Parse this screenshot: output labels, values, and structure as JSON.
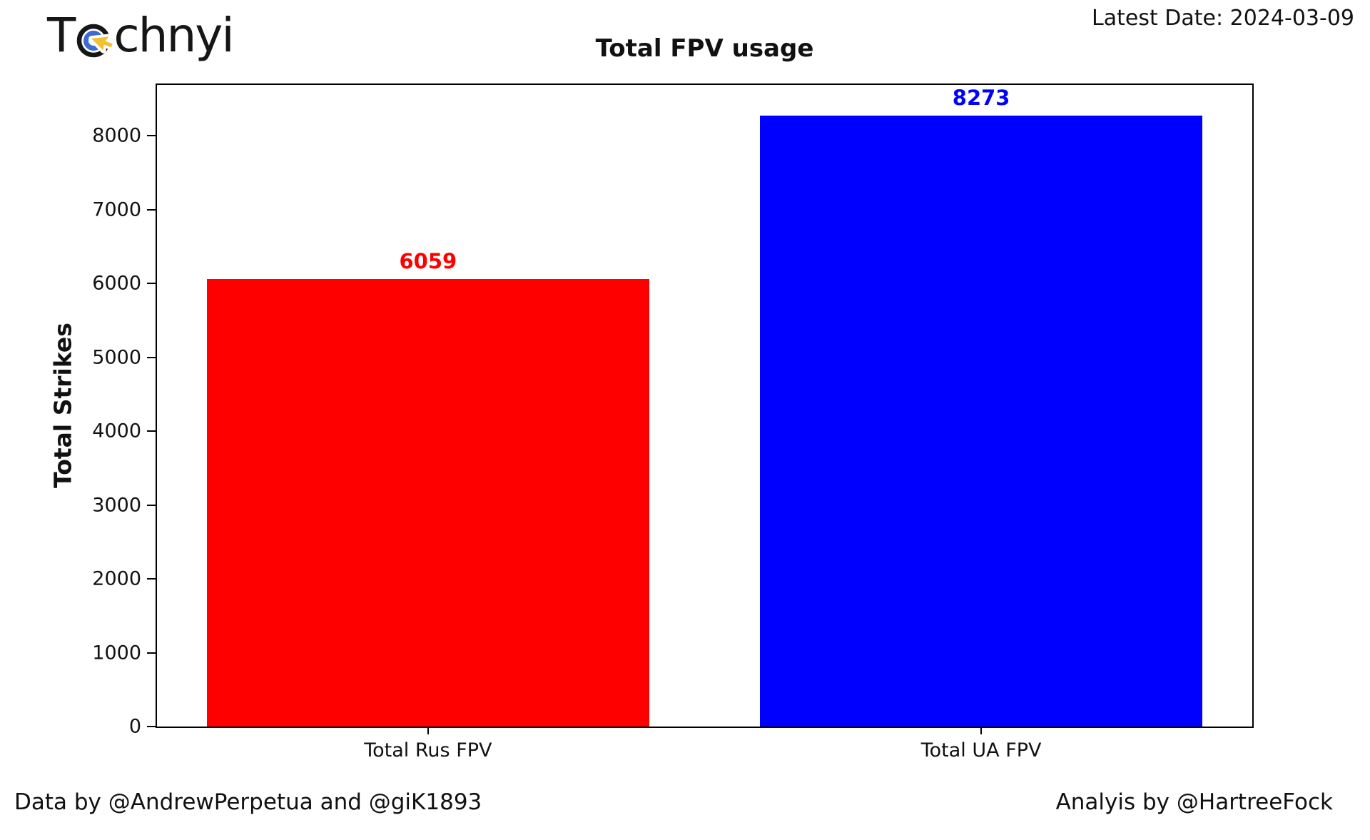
{
  "logo": {
    "prefix": "T",
    "suffix": "chnyi"
  },
  "header": {
    "latest_date": "Latest Date: 2024-03-09"
  },
  "chart_data": {
    "type": "bar",
    "title": "Total FPV usage",
    "ylabel": "Total Strikes",
    "xlabel": "",
    "categories": [
      "Total Rus FPV",
      "Total UA FPV"
    ],
    "values": [
      6059,
      8273
    ],
    "value_labels": [
      "6059",
      "8273"
    ],
    "bar_colors": [
      "#ff0000",
      "#0000ff"
    ],
    "label_colors": [
      "#ff0000",
      "#0000ff"
    ],
    "ylim": [
      0,
      8687
    ],
    "xlim": [
      -0.49,
      1.49
    ],
    "bar_width": 0.8,
    "yticks": [
      0,
      1000,
      2000,
      3000,
      4000,
      5000,
      6000,
      7000,
      8000
    ],
    "grid": false,
    "legend": null
  },
  "footer": {
    "left": "Data by @AndrewPerpetua and @giK1893",
    "right": "Analyis by @HartreeFock"
  },
  "colors": {
    "axis": "#000000",
    "logo_text": "#161616",
    "logo_blue": "#3e6bd0",
    "logo_yellow": "#f0c233"
  }
}
